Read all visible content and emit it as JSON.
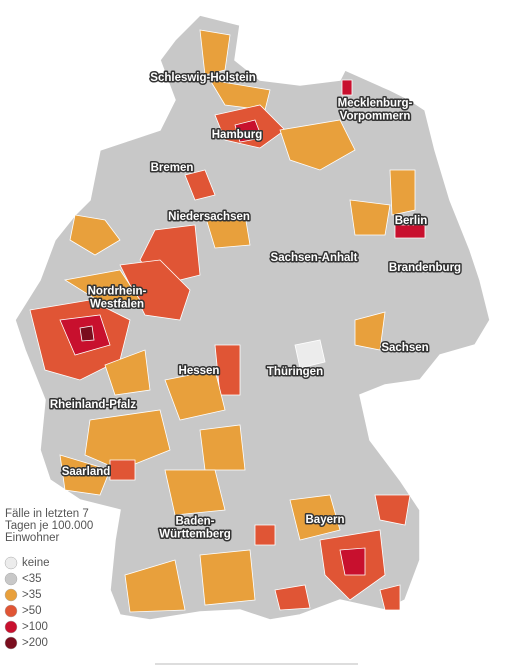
{
  "map": {
    "labels": [
      [
        "Schleswig-Holstein"
      ],
      [
        "Mecklenburg-",
        "Vorpommern"
      ],
      [
        "Hamburg"
      ],
      [
        "Bremen"
      ],
      [
        "Niedersachsen"
      ],
      [
        "Berlin"
      ],
      [
        "Sachsen-Anhalt"
      ],
      [
        "Brandenburg"
      ],
      [
        "Nordrhein-",
        "Westfalen"
      ],
      [
        "Sachsen"
      ],
      [
        "Hessen"
      ],
      [
        "Thüringen"
      ],
      [
        "Rheinland-Pfalz"
      ],
      [
        "Saarland"
      ],
      [
        "Bayern"
      ],
      [
        "Baden-",
        "Württemberg"
      ]
    ]
  },
  "legend": {
    "title": [
      "Fälle in letzten 7",
      "Tagen je 100.000",
      "Einwohner"
    ],
    "items": [
      {
        "label": "keine",
        "color": "#ececec"
      },
      {
        "label": "<35",
        "color": "#c8c8c8"
      },
      {
        "label": ">35",
        "color": "#e8a03c"
      },
      {
        "label": ">50",
        "color": "#e05535"
      },
      {
        "label": ">100",
        "color": "#c8102e"
      },
      {
        "label": ">200",
        "color": "#7a0d1e"
      }
    ]
  }
}
